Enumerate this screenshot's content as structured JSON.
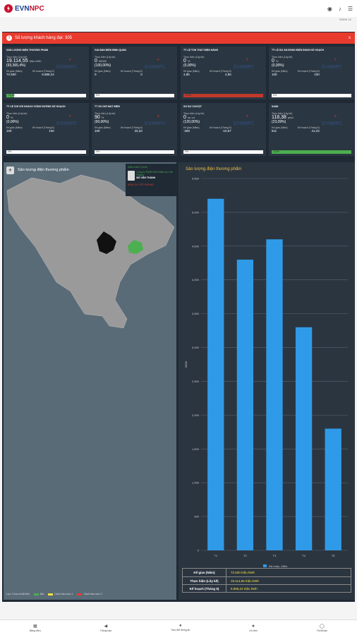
{
  "header": {
    "logo_text": "EVN",
    "logo_text2": "NPC",
    "subtitle": "NNNK 10"
  },
  "alert": {
    "text": "Số lượng khách hàng đạt: 305",
    "close": "x"
  },
  "cards": [
    {
      "title": "SẢN LƯỢNG ĐIỆN THƯƠNG PHẨM",
      "label": "Thực hiện (Lũy kế)",
      "value": "19.114,55",
      "unit": "triệu kWh",
      "pct": "(93,365,4%)",
      "c1": "Kế giao (Năm)",
      "c2": "Kế hoạch (Tháng 5)",
      "v1": "72.600",
      "v2": "5.888,24",
      "bar_pct": 10,
      "bar_color": "#4caf50",
      "bar_text": "73,4%"
    },
    {
      "title": "GIÁ BÁN ĐIỆN BÌNH QUÂN",
      "label": "Thực hiện (Lũy kế)",
      "value": "0",
      "unit": "đ/kWh",
      "pct": "(100,00%)",
      "c1": "Kế giao (Năm)",
      "c2": "Kế hoạch (Tháng 5)",
      "v1": "0",
      "v2": "0",
      "bar_pct": 0,
      "bar_color": "#e83b2e",
      "bar_text": "0%"
    },
    {
      "title": "TỶ LỆ TỔN THẤT ĐIỆN NĂNG",
      "label": "Thực hiện (Lũy kế)",
      "value": "0",
      "unit": "%",
      "pct": "(0,00%)",
      "c1": "Kế giao (Năm)",
      "c2": "Kế hoạch (Tháng 5)",
      "v1": "4,85",
      "v2": "4,85",
      "bar_pct": 100,
      "bar_color": "#c0392b",
      "bar_text": "100%"
    },
    {
      "title": "TỶ LỆ DỰ ÁN ĐÓNG ĐIỆN ĐÚNG KẾ HOẠCH",
      "label": "Thực hiện (Lũy kế)",
      "value": "0",
      "unit": "%",
      "pct": "(0,00%)",
      "c1": "Kế giao (Năm)",
      "c2": "Kế hoạch (Tháng 5)",
      "v1": "100",
      "v2": "100",
      "bar_pct": 0,
      "bar_color": "#e83b2e",
      "bar_text": "0%"
    },
    {
      "title": "TỶ LỆ CHỈ VỚI KHÁCH CÔNG ĐƯỜNG KẾ HOẠCH",
      "label": "Thực hiện (Lũy kế)",
      "value": "0",
      "unit": "%",
      "pct": "(0,00%)",
      "c1": "Kế giao (Năm)",
      "c2": "Kế hoạch (Tháng 5)",
      "v1": "100",
      "v2": "100",
      "bar_pct": 0,
      "bar_color": "#e83b2e",
      "bar_text": "0%"
    },
    {
      "title": "TT SỐ GIỜ MẤT ĐIỆN",
      "label": "Thực hiện (Lũy kế)",
      "value": "90",
      "unit": "%",
      "pct": "(90,00%)",
      "c1": "Kế giao (Năm)",
      "c2": "Kế hoạch (Tháng 5)",
      "v1": "100",
      "v2": "33,33",
      "bar_pct": 0,
      "bar_color": "#e83b2e",
      "bar_text": "0%"
    },
    {
      "title": "SỐ SỰ CỐ/CỘT",
      "label": "Thực hiện (Lũy kế)",
      "value": "0",
      "unit": "sự cố",
      "pct": "(120,00%)",
      "c1": "Kế giao (Năm)",
      "c2": "Kế hoạch (Tháng 5)",
      "v1": "-260",
      "v2": "-10,67",
      "bar_pct": 0,
      "bar_color": "#e83b2e",
      "bar_text": "0%"
    },
    {
      "title": "SAIDI",
      "label": "Thực hiện (Lũy kế)",
      "value": "118,38",
      "unit": "phút",
      "pct": "(23,09%)",
      "c1": "Kế giao (Năm)",
      "c2": "Kế hoạch (Tháng 5)",
      "v1": "511",
      "v2": "41,23",
      "bar_pct": 100,
      "bar_color": "#4caf50",
      "bar_text": "100%"
    }
  ],
  "card_watermark": "EVNNPC",
  "map": {
    "title": "Sản lượng điện thương phẩm",
    "add": "+",
    "legend": [
      {
        "label": "Lưu: Chưa chuỗi tiêu",
        "color": ""
      },
      {
        "label": "Đạt",
        "color": "#4caf50"
      },
      {
        "label": "Cảnh báo mức 1",
        "color": "#f0e040"
      },
      {
        "label": "Cảnh báo mức 2",
        "color": "#e83b2e"
      }
    ],
    "info": {
      "head": "SẢN XUẤT (CỤC)",
      "company": "Công ty TNHH MTV Điện lực Hải Phòng",
      "name": "ĐỖ VĂN THÀNH",
      "foot": "XEM CHI TIẾT PHÒNG"
    }
  },
  "chart_data": {
    "type": "bar",
    "title": "Sản lượng điện thương phẩm",
    "categories": [
      "T1",
      "T2",
      "T3",
      "T4",
      "T5"
    ],
    "series": [
      {
        "name": "Đã nhận, Kiểm",
        "values": [
          5200,
          4300,
          4600,
          3300,
          1800
        ]
      }
    ],
    "ylabel": "MWh",
    "yticks": [
      "0",
      "500",
      "1,000",
      "1,500",
      "2,000",
      "2,500",
      "3,000",
      "3,500",
      "4,000",
      "4,500",
      "5,000",
      "5,500"
    ],
    "ylim": [
      0,
      5500
    ],
    "legend": "bottom",
    "grid": true,
    "color": "#2f9be8"
  },
  "summary": [
    {
      "k": "Kế giao (Năm)",
      "v": "72.600 triệu kWh"
    },
    {
      "k": "Thực hiện (Lũy kế)",
      "v": "19.114,55 triệu kWh"
    },
    {
      "k": "Kế hoạch (Tháng 5)",
      "v": "5.888,24 triệu kWh"
    }
  ],
  "nav": [
    {
      "label": "Bảng điều",
      "icon": "dashboard-icon"
    },
    {
      "label": "Thông báo",
      "icon": "megaphone-icon"
    },
    {
      "label": "Trao đổi thông tin",
      "icon": "chat-icon"
    },
    {
      "label": "Ưu tiên",
      "icon": "star-icon"
    },
    {
      "label": "Tài khoản",
      "icon": "user-icon"
    }
  ]
}
